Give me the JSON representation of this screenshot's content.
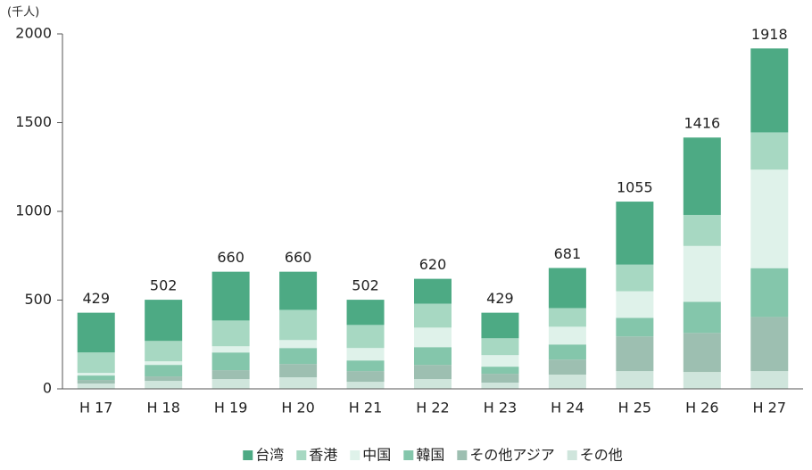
{
  "chart_data": {
    "type": "stacked_bar",
    "unit_label": "(千人)",
    "categories": [
      "H 17",
      "H 18",
      "H 19",
      "H 20",
      "H 21",
      "H 22",
      "H 23",
      "H 24",
      "H 25",
      "H 26",
      "H 27"
    ],
    "totals": [
      429,
      502,
      660,
      660,
      502,
      620,
      429,
      681,
      1055,
      1416,
      1918
    ],
    "series": [
      {
        "name": "その他",
        "color": "#cfe5dc",
        "values": [
          30,
          45,
          55,
          65,
          40,
          55,
          35,
          80,
          100,
          95,
          100
        ]
      },
      {
        "name": "その他アジア",
        "color": "#9dbfb1",
        "values": [
          20,
          25,
          50,
          75,
          60,
          80,
          50,
          85,
          195,
          220,
          305
        ]
      },
      {
        "name": "韓国",
        "color": "#84c6ab",
        "values": [
          25,
          65,
          100,
          90,
          60,
          100,
          40,
          85,
          105,
          175,
          275
        ]
      },
      {
        "name": "中国",
        "color": "#dff2ea",
        "values": [
          15,
          20,
          35,
          45,
          70,
          110,
          65,
          100,
          150,
          315,
          555
        ]
      },
      {
        "name": "香港",
        "color": "#a7d8c2",
        "values": [
          115,
          115,
          145,
          170,
          130,
          135,
          95,
          105,
          150,
          175,
          210
        ]
      },
      {
        "name": "台湾",
        "color": "#4daa84",
        "values": [
          224,
          232,
          275,
          215,
          142,
          140,
          144,
          226,
          355,
          436,
          473
        ]
      }
    ],
    "legend_order": [
      5,
      4,
      3,
      2,
      1,
      0
    ],
    "ylim": [
      0,
      2000
    ],
    "yticks": [
      0,
      500,
      1000,
      1500,
      2000
    ],
    "grid": false
  }
}
